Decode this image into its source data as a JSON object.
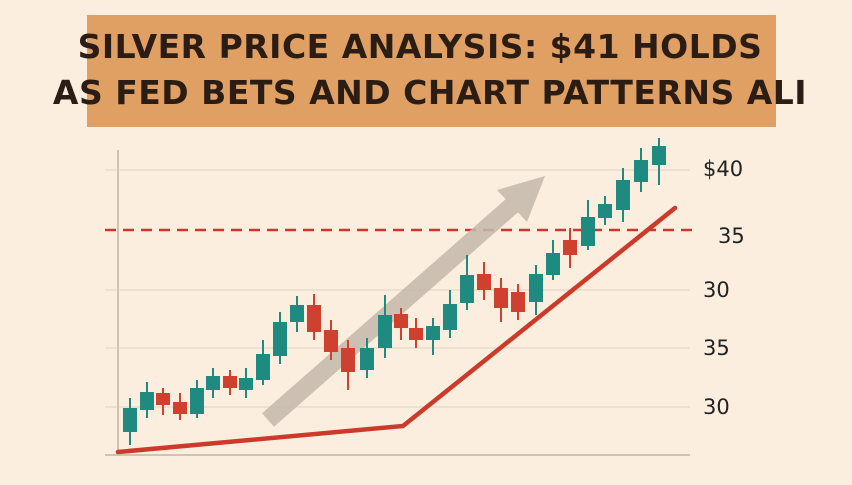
{
  "headline": {
    "lines": [
      "SILVER PRICE ANALYSIS: $41 HOLDS",
      "AS FED BETS AND CHART PATTERNS ALI"
    ]
  },
  "axis_labels": [
    "$40",
    "35",
    "30",
    "35",
    "30"
  ]
}
